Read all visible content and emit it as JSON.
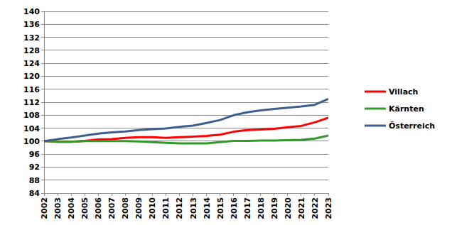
{
  "chart_data": {
    "type": "line",
    "x": [
      2002,
      2003,
      2004,
      2005,
      2006,
      2007,
      2008,
      2009,
      2010,
      2011,
      2012,
      2013,
      2014,
      2015,
      2016,
      2017,
      2018,
      2019,
      2020,
      2021,
      2022,
      2023
    ],
    "xlim": [
      2002,
      2023
    ],
    "xticks": [
      2002,
      2003,
      2004,
      2005,
      2006,
      2007,
      2008,
      2009,
      2010,
      2011,
      2012,
      2013,
      2014,
      2015,
      2016,
      2017,
      2018,
      2019,
      2020,
      2021,
      2022,
      2023
    ],
    "ylim": [
      84,
      140
    ],
    "yticks": [
      84,
      88,
      92,
      96,
      100,
      104,
      108,
      112,
      116,
      120,
      124,
      128,
      132,
      136,
      140
    ],
    "grid": true,
    "legend": "right",
    "series": [
      {
        "name": "Villach",
        "color": "#ff0000",
        "values": [
          100,
          99.8,
          99.8,
          100.1,
          100.5,
          100.6,
          101.0,
          101.2,
          101.2,
          101.0,
          101.2,
          101.4,
          101.6,
          102.0,
          102.9,
          103.4,
          103.6,
          103.8,
          104.3,
          104.7,
          105.8,
          107.2
        ]
      },
      {
        "name": "Kärnten",
        "color": "#33992b",
        "values": [
          100,
          99.8,
          99.8,
          100.0,
          100.0,
          100.0,
          100.0,
          99.9,
          99.7,
          99.5,
          99.3,
          99.3,
          99.3,
          99.7,
          100.1,
          100.1,
          100.2,
          100.2,
          100.3,
          100.4,
          100.8,
          101.7
        ]
      },
      {
        "name": "Österreich",
        "color": "#3d5f8f",
        "values": [
          100,
          100.6,
          101.1,
          101.7,
          102.3,
          102.7,
          103.0,
          103.4,
          103.7,
          103.9,
          104.4,
          104.8,
          105.6,
          106.5,
          108.0,
          108.9,
          109.5,
          109.9,
          110.3,
          110.7,
          111.2,
          113.0
        ]
      }
    ]
  }
}
